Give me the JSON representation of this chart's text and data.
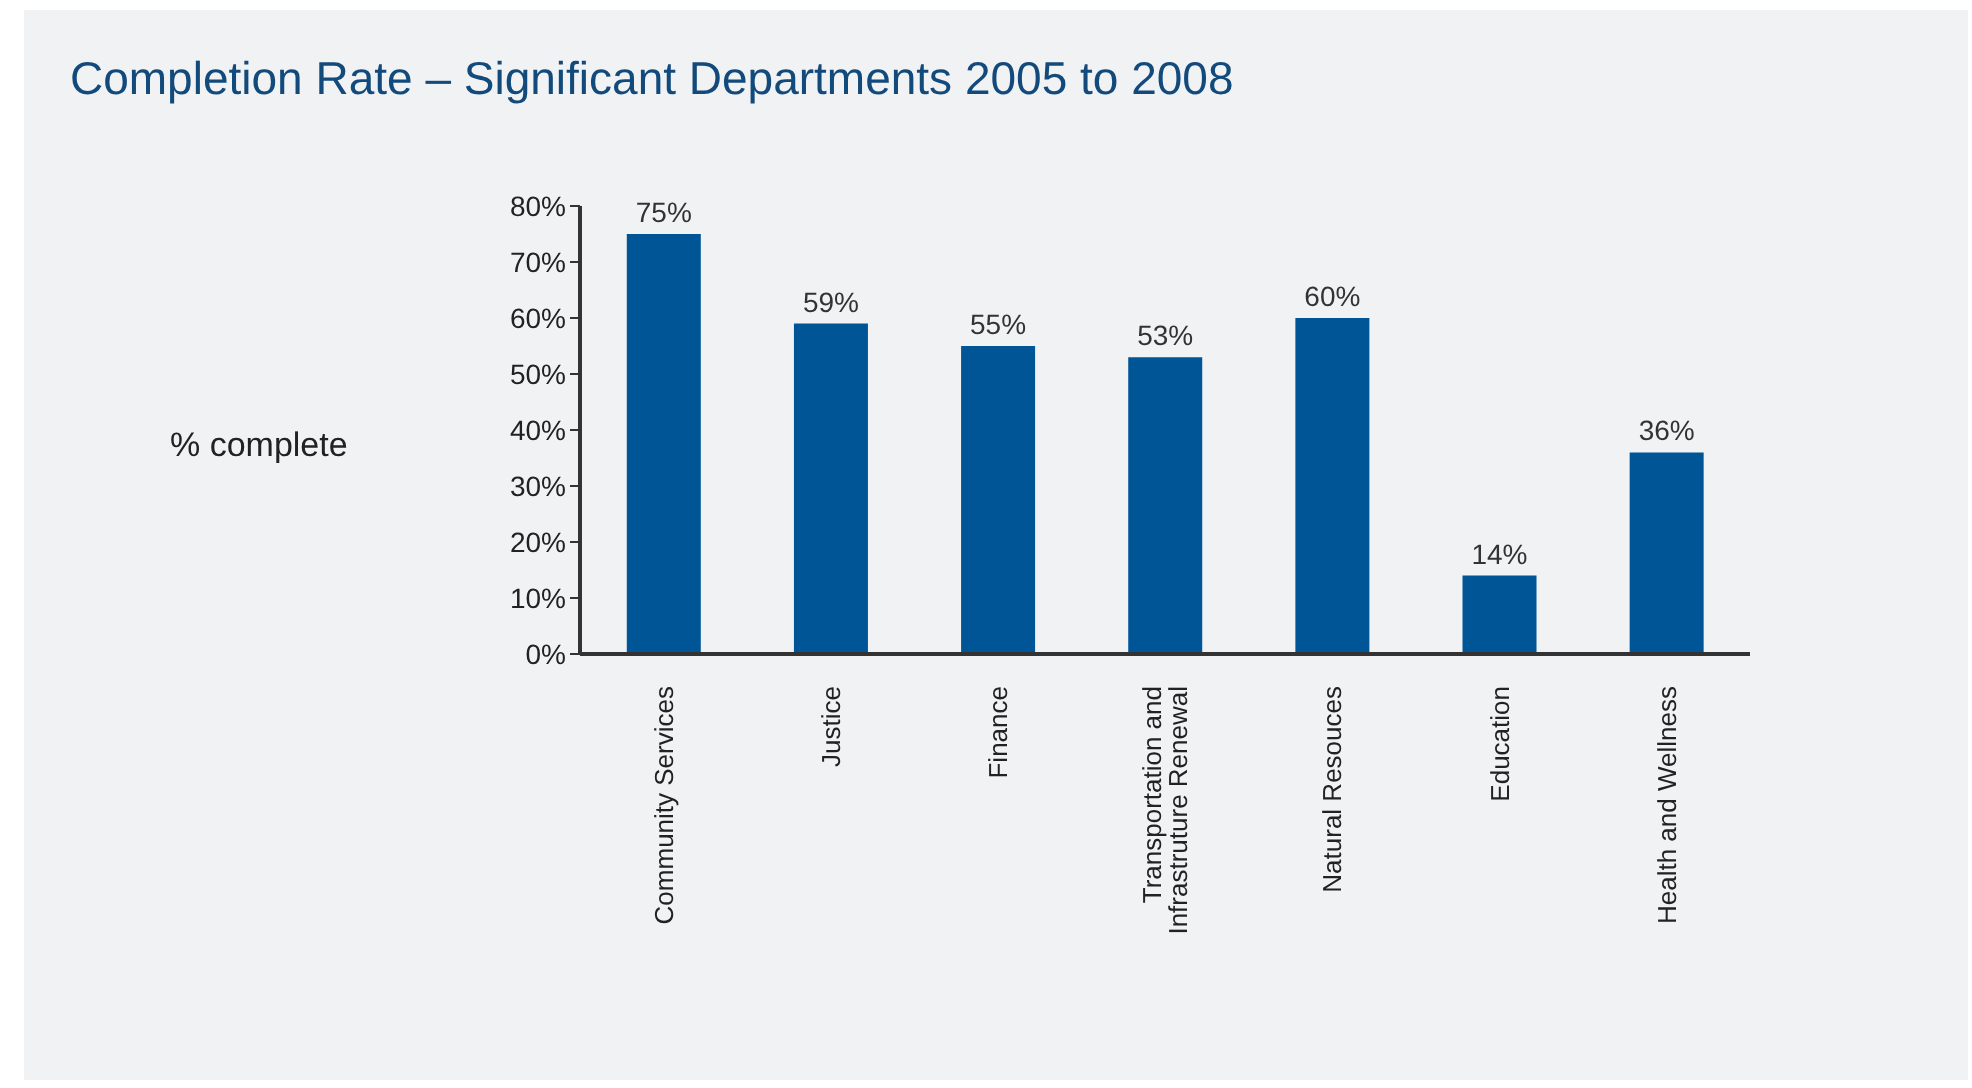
{
  "chart_data": {
    "type": "bar",
    "title": "Completion Rate – Significant Departments 2005 to 2008",
    "ylabel": "% complete",
    "categories": [
      "Community Services",
      "Justice",
      "Finance",
      "Transportation and Infrastruture Renewal",
      "Natural Resouces",
      "Education",
      "Health and Wellness"
    ],
    "values": [
      75,
      59,
      55,
      53,
      60,
      14,
      36
    ],
    "value_labels": [
      "75%",
      "59%",
      "55%",
      "53%",
      "60%",
      "14%",
      "36%"
    ],
    "color": "#005596",
    "ylim": [
      0,
      80
    ],
    "yticks": [
      {
        "value": 0,
        "label": "0%"
      },
      {
        "value": 10,
        "label": "10%"
      },
      {
        "value": 20,
        "label": "20%"
      },
      {
        "value": 30,
        "label": "30%"
      },
      {
        "value": 40,
        "label": "40%"
      },
      {
        "value": 50,
        "label": "50%"
      },
      {
        "value": 60,
        "label": "60%"
      },
      {
        "value": 70,
        "label": "70%"
      },
      {
        "value": 80,
        "label": "80%"
      }
    ],
    "grid": false,
    "legend": false
  }
}
